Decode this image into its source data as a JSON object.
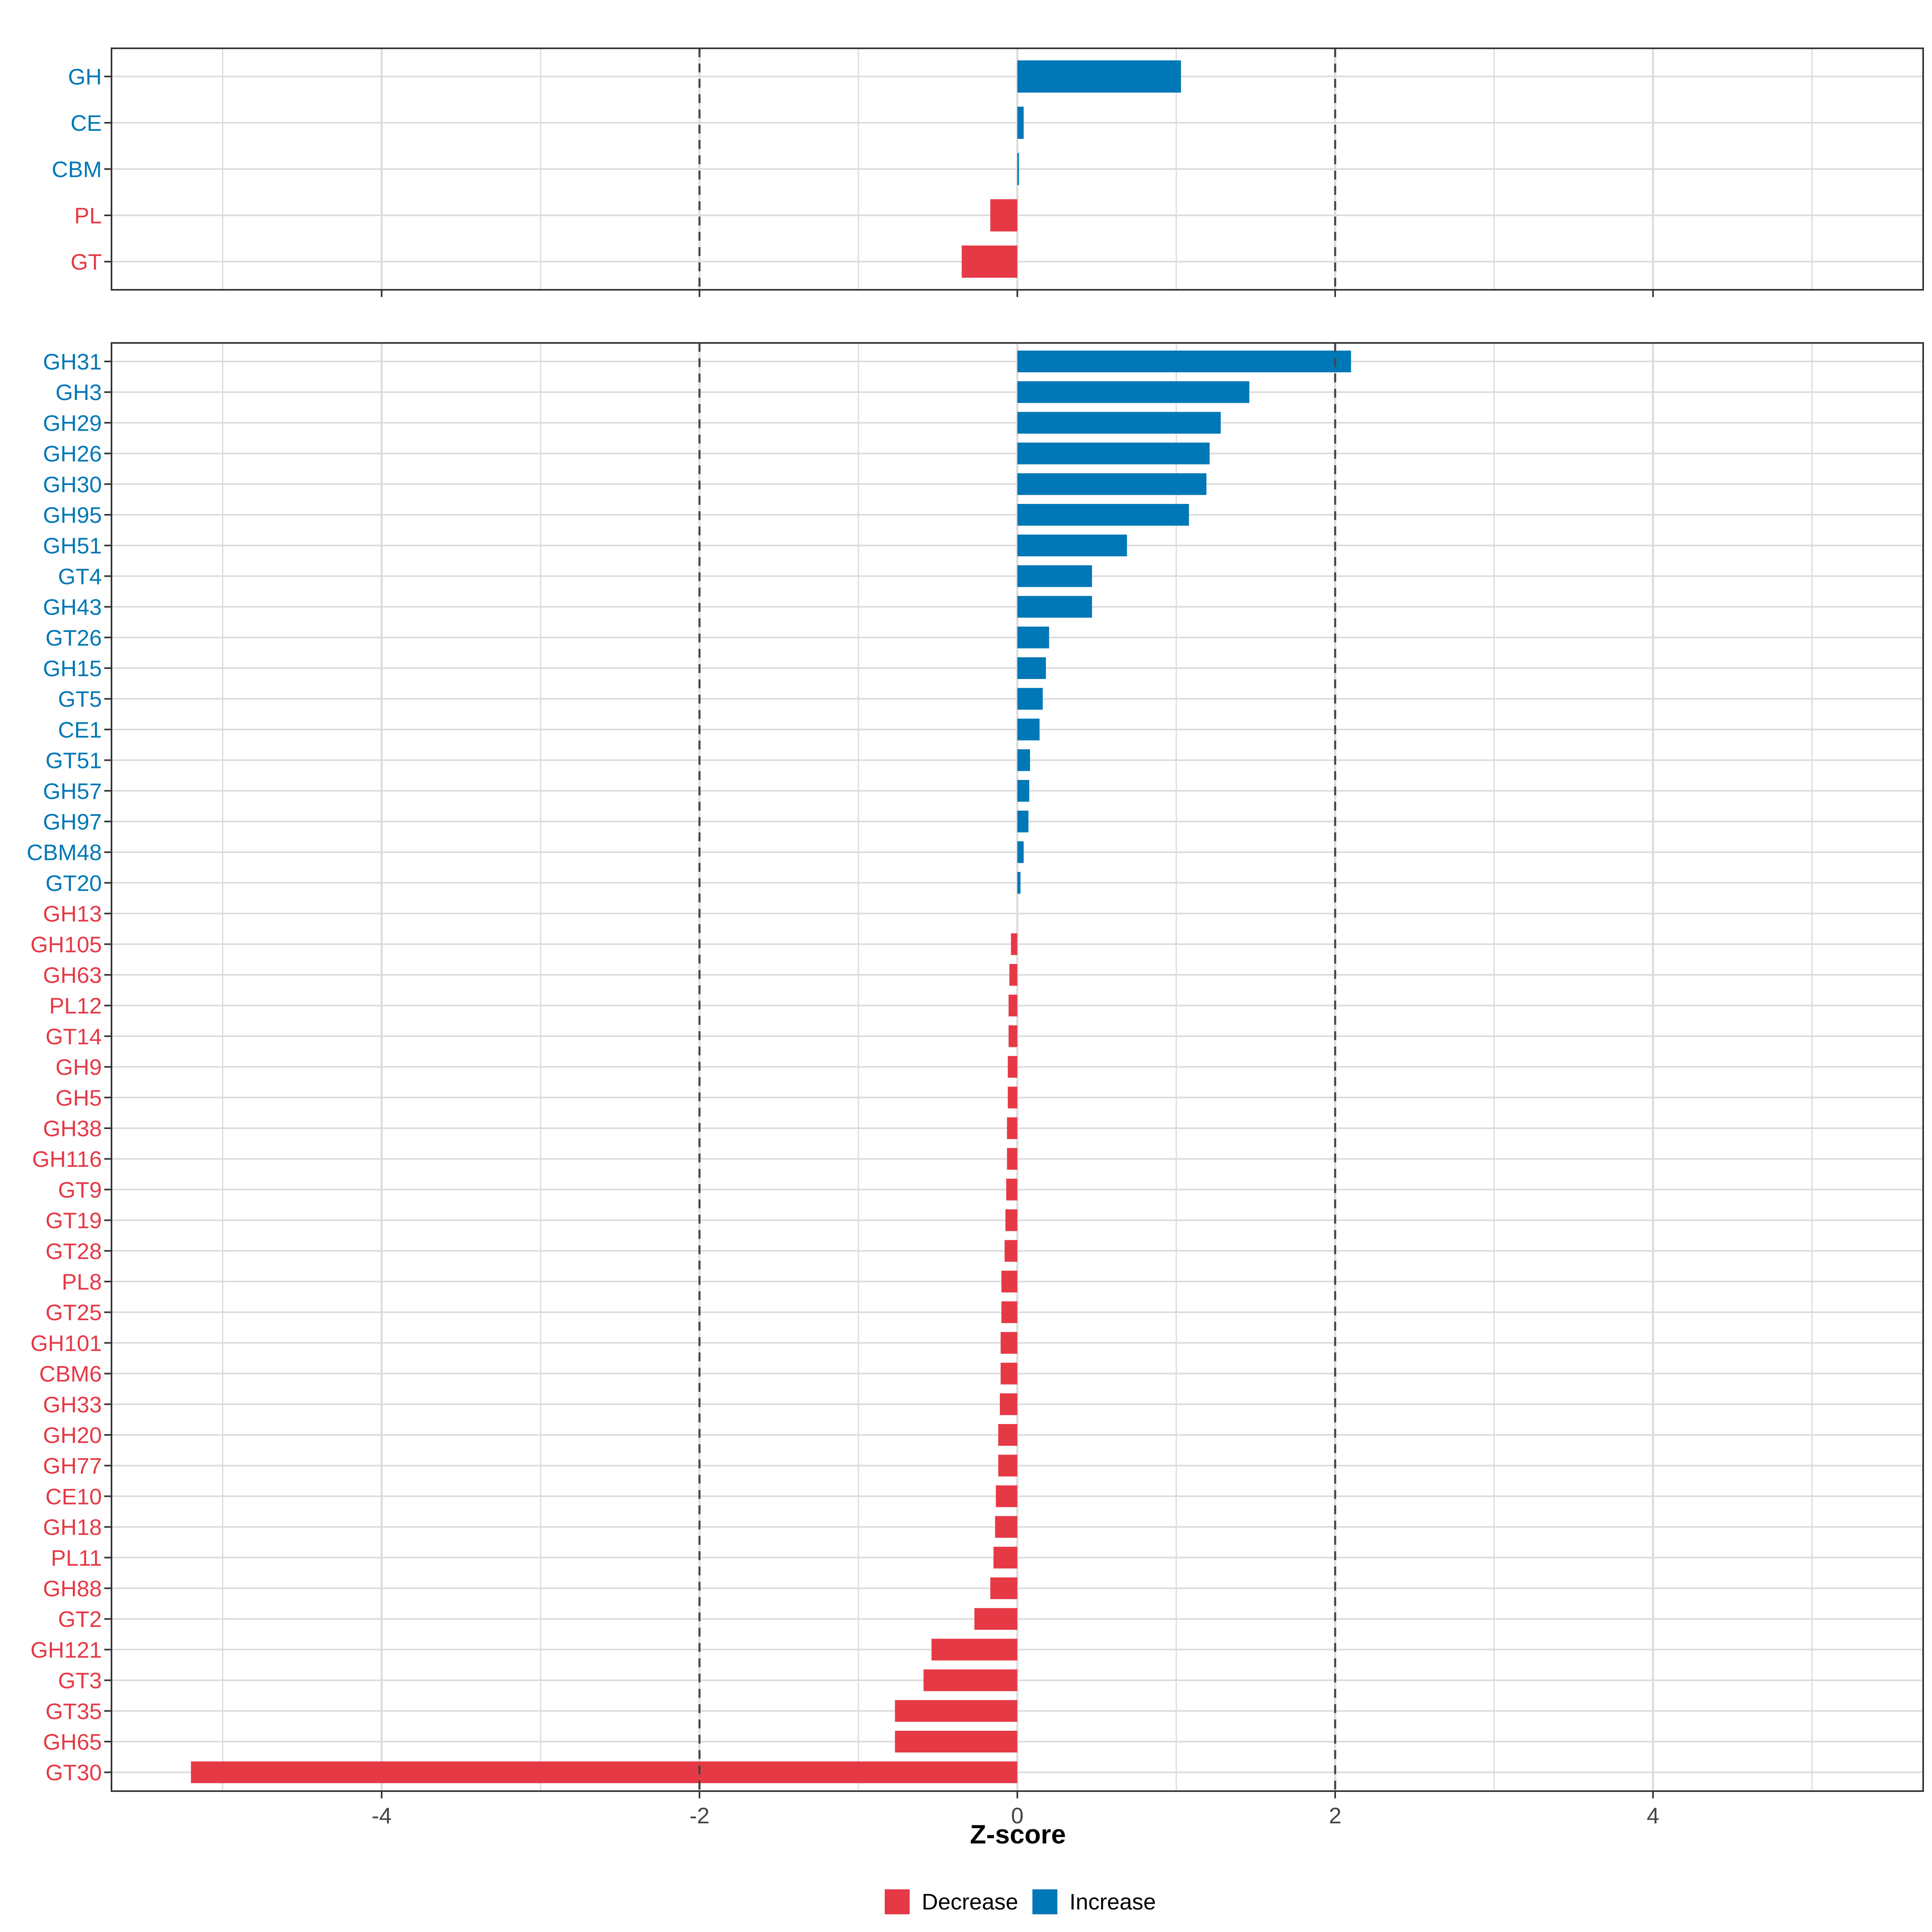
{
  "chart_data": [
    {
      "type": "bar",
      "orientation": "horizontal",
      "panel": "top",
      "categories": [
        "GH",
        "CE",
        "CBM",
        "PL",
        "GT"
      ],
      "values": [
        1.03,
        0.04,
        0.01,
        -0.17,
        -0.35
      ],
      "xlim": [
        -5.7,
        5.7
      ],
      "thresholds": [
        -2,
        2
      ]
    },
    {
      "type": "bar",
      "orientation": "horizontal",
      "panel": "bottom",
      "categories": [
        "GH31",
        "GH3",
        "GH29",
        "GH26",
        "GH30",
        "GH95",
        "GH51",
        "GT4",
        "GH43",
        "GT26",
        "GH15",
        "GT5",
        "CE1",
        "GT51",
        "GH57",
        "GH97",
        "CBM48",
        "GT20",
        "GH13",
        "GH105",
        "GH63",
        "PL12",
        "GT14",
        "GH9",
        "GH5",
        "GH38",
        "GH116",
        "GT9",
        "GT19",
        "GT28",
        "PL8",
        "GT25",
        "GH101",
        "CBM6",
        "GH33",
        "GH20",
        "GH77",
        "CE10",
        "GH18",
        "PL11",
        "GH88",
        "GT2",
        "GH121",
        "GT3",
        "GT35",
        "GH65",
        "GT30"
      ],
      "values": [
        2.1,
        1.46,
        1.28,
        1.21,
        1.19,
        1.08,
        0.69,
        0.47,
        0.47,
        0.2,
        0.18,
        0.16,
        0.14,
        0.08,
        0.075,
        0.07,
        0.04,
        0.02,
        0,
        -0.04,
        -0.05,
        -0.055,
        -0.055,
        -0.06,
        -0.06,
        -0.065,
        -0.065,
        -0.07,
        -0.075,
        -0.08,
        -0.1,
        -0.1,
        -0.105,
        -0.105,
        -0.11,
        -0.12,
        -0.12,
        -0.135,
        -0.14,
        -0.15,
        -0.17,
        -0.27,
        -0.54,
        -0.59,
        -0.77,
        -0.77,
        -5.2
      ],
      "xlim": [
        -5.7,
        5.7
      ],
      "thresholds": [
        -2,
        2
      ]
    }
  ],
  "axis": {
    "xlabel": "Z-score",
    "ticks": [
      -4,
      -2,
      0,
      2,
      4
    ],
    "tick_labels": [
      "-4",
      "-2",
      "0",
      "2",
      "4"
    ]
  },
  "legend": {
    "items": [
      {
        "label": "Decrease",
        "color": "#E63946"
      },
      {
        "label": "Increase",
        "color": "#0077B6"
      }
    ]
  },
  "colors": {
    "increase": "#0077B6",
    "decrease": "#E63946",
    "grid": "#DCDCDC",
    "frame": "#333333",
    "threshold": "#444444"
  }
}
